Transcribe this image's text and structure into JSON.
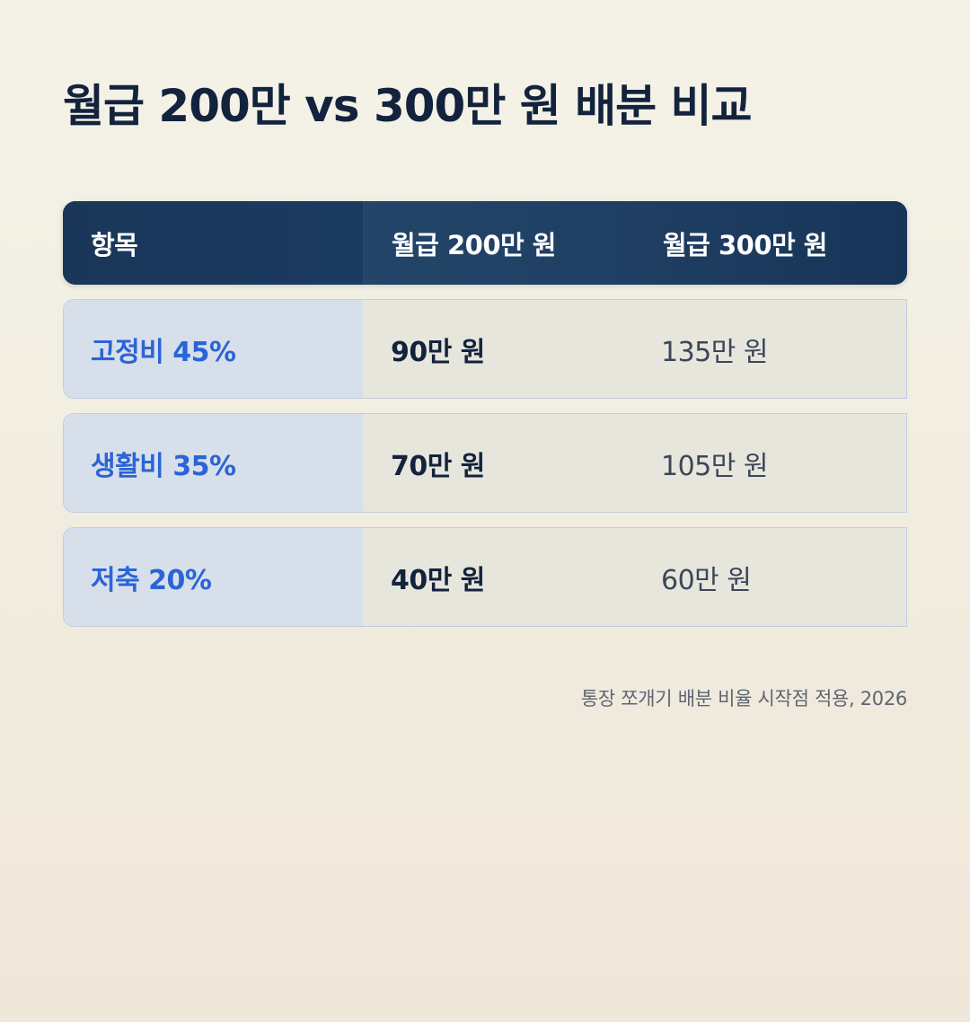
{
  "title": "월급 200만 vs 300만 원 배분 비교",
  "table": {
    "headers": [
      "항목",
      "월급 200만 원",
      "월급 300만 원"
    ],
    "rows": [
      {
        "item": "고정비 45%",
        "salary_200": "90만 원",
        "salary_300": "135만 원"
      },
      {
        "item": "생활비 35%",
        "salary_200": "70만 원",
        "salary_300": "105만 원"
      },
      {
        "item": "저축 20%",
        "salary_200": "40만 원",
        "salary_300": "60만 원"
      }
    ]
  },
  "note": "통장 쪼개기 배분 비율 시작점 적용, 2026",
  "colors": {
    "header_bg": "#1b3a60",
    "item_text": "#2b64d6",
    "item_cell_bg": "#d7e0ea",
    "value_cell_bg": "#e7e6dd",
    "title_text": "#13233d"
  }
}
